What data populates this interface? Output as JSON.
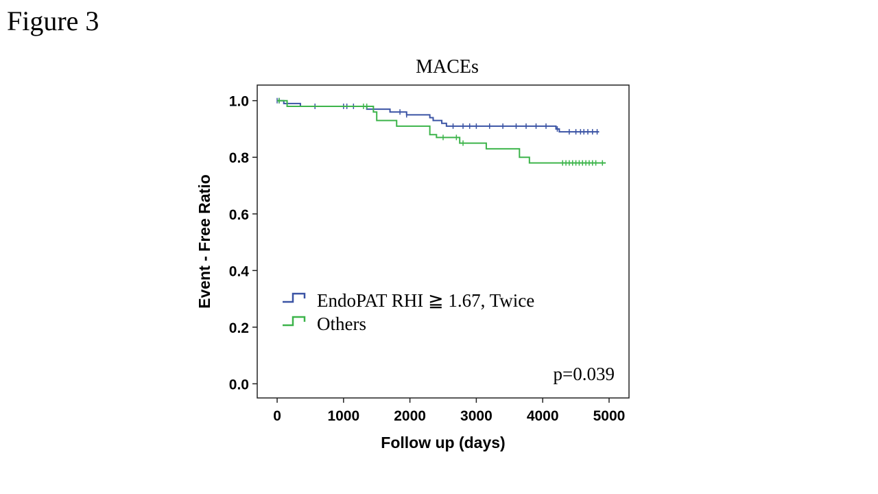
{
  "figure_label": "Figure 3",
  "chart_data": {
    "type": "line",
    "subtype": "kaplan-meier",
    "title": "MACEs",
    "xlabel": "Follow up (days)",
    "ylabel": "Event - Free Ratio",
    "xlim": [
      -300,
      5300
    ],
    "ylim": [
      -0.05,
      1.055
    ],
    "xticks": [
      0,
      1000,
      2000,
      3000,
      4000,
      5000
    ],
    "yticks": [
      0.0,
      0.2,
      0.4,
      0.6,
      0.8,
      1.0
    ],
    "ytick_labels": [
      "0.0",
      "0.2",
      "0.4",
      "0.6",
      "0.8",
      "1.0"
    ],
    "grid": false,
    "legend_position": "lower-left",
    "annotation": "p=0.039",
    "series": [
      {
        "name": "EndoPAT RHI ≧ 1.67,  Twice",
        "color": "#3a53a4",
        "steps": [
          [
            0,
            1.0
          ],
          [
            100,
            0.99
          ],
          [
            350,
            0.98
          ],
          [
            1350,
            0.97
          ],
          [
            1700,
            0.96
          ],
          [
            1950,
            0.95
          ],
          [
            2300,
            0.94
          ],
          [
            2350,
            0.93
          ],
          [
            2480,
            0.92
          ],
          [
            2550,
            0.91
          ],
          [
            4200,
            0.9
          ],
          [
            4250,
            0.89
          ],
          [
            4850,
            0.89
          ]
        ],
        "censored": [
          0,
          30,
          570,
          1000,
          1050,
          1150,
          1850,
          1950,
          2650,
          2800,
          2900,
          3000,
          3200,
          3400,
          3600,
          3750,
          3900,
          4050,
          4220,
          4400,
          4500,
          4570,
          4620,
          4680,
          4750,
          4820
        ]
      },
      {
        "name": "Others",
        "color": "#3cb44a",
        "steps": [
          [
            0,
            1.0
          ],
          [
            150,
            0.98
          ],
          [
            1450,
            0.96
          ],
          [
            1500,
            0.93
          ],
          [
            1800,
            0.91
          ],
          [
            2300,
            0.88
          ],
          [
            2400,
            0.87
          ],
          [
            2750,
            0.85
          ],
          [
            3150,
            0.83
          ],
          [
            3650,
            0.8
          ],
          [
            3800,
            0.78
          ],
          [
            4950,
            0.78
          ]
        ],
        "censored": [
          30,
          1300,
          1350,
          2500,
          2700,
          2800,
          4300,
          4350,
          4400,
          4450,
          4500,
          4550,
          4600,
          4650,
          4700,
          4750,
          4800,
          4900
        ]
      }
    ]
  }
}
